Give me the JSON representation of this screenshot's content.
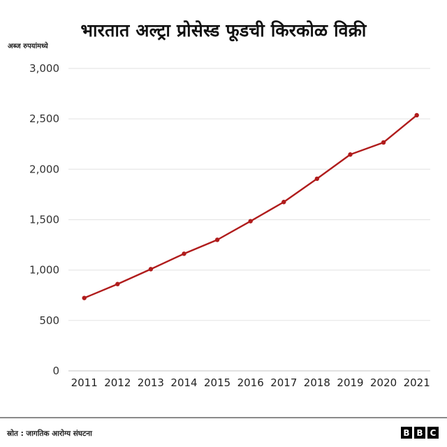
{
  "header": {
    "title": "भारतात अल्ट्रा प्रोसेस्ड फूडची किरकोळ विक्री",
    "unit_label": "अब्ज रुपयांमध्ये"
  },
  "footer": {
    "source": "स्रोत : जागतिक आरोग्य संघटना",
    "logo_letters": [
      "B",
      "B",
      "C"
    ]
  },
  "colors": {
    "line": "#b01c1c",
    "grid": "#e6e6e6",
    "axis": "#cfcfcf"
  },
  "chart_data": {
    "type": "line",
    "title": "भारतात अल्ट्रा प्रोसेस्ड फूडची किरकोळ विक्री",
    "ylabel": "अब्ज रुपयांमध्ये",
    "xlabel": "",
    "categories": [
      "2011",
      "2012",
      "2013",
      "2014",
      "2015",
      "2016",
      "2017",
      "2018",
      "2019",
      "2020",
      "2021"
    ],
    "series": [
      {
        "name": "Retail sales",
        "values": [
          723,
          861,
          1009,
          1162,
          1300,
          1485,
          1675,
          1906,
          2146,
          2266,
          2536
        ]
      }
    ],
    "ylim": [
      0,
      3000
    ],
    "yticks": [
      0,
      500,
      1000,
      1500,
      2000,
      2500,
      3000
    ],
    "ytick_labels": [
      "0",
      "500",
      "1,000",
      "1,500",
      "2,000",
      "2,500",
      "3,000"
    ],
    "grid": true,
    "legend": "none",
    "source": "स्रोत : जागतिक आरोग्य संघटना"
  }
}
